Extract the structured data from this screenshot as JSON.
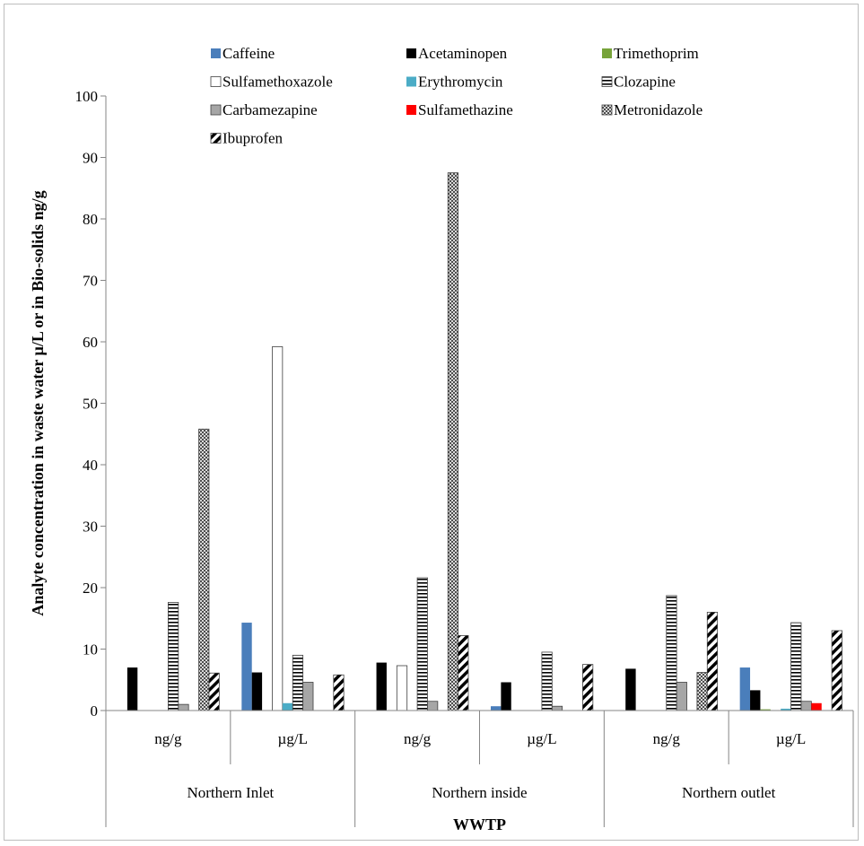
{
  "chart_data": {
    "type": "bar",
    "title": "",
    "xlabel": "WWTP",
    "ylabel": "Analyte concentration in waste water µ/L or in Bio-solids ng/g",
    "ylim": [
      0,
      100
    ],
    "yticks": [
      0,
      10,
      20,
      30,
      40,
      50,
      60,
      70,
      80,
      90,
      100
    ],
    "grid": false,
    "legend_position": "top",
    "groups": [
      {
        "label": "Northern Inlet",
        "categories": [
          "ng/g",
          "µg/L"
        ]
      },
      {
        "label": "Northern inside",
        "categories": [
          "ng/g",
          "µg/L"
        ]
      },
      {
        "label": "Northern outlet",
        "categories": [
          "ng/g",
          "µg/L"
        ]
      }
    ],
    "categories": [
      "ng/g",
      "µg/L",
      "ng/g",
      "µg/L",
      "ng/g",
      "µg/L"
    ],
    "series": [
      {
        "name": "Caffeine",
        "color": "#4a7ebb",
        "pattern": "solid",
        "values": [
          0,
          14.3,
          0,
          0.7,
          0,
          7.0
        ]
      },
      {
        "name": "Acetaminopen",
        "color": "#000000",
        "pattern": "solid",
        "values": [
          7.0,
          6.2,
          7.8,
          4.6,
          6.8,
          3.3
        ]
      },
      {
        "name": "Trimethoprim",
        "color": "#77a33a",
        "pattern": "solid",
        "values": [
          0,
          0,
          0,
          0,
          0,
          0.2
        ]
      },
      {
        "name": "Sulfamethoxazole",
        "color": "#ffffff",
        "pattern": "outline",
        "values": [
          0,
          59.2,
          7.3,
          0,
          0,
          0
        ]
      },
      {
        "name": "Erythromycin",
        "color": "#4bacc6",
        "pattern": "solid",
        "values": [
          0,
          1.2,
          0,
          0,
          0,
          0.3
        ]
      },
      {
        "name": "Clozapine",
        "color": "#000000",
        "pattern": "horizontal-stripes",
        "values": [
          17.6,
          9.0,
          21.6,
          9.5,
          18.7,
          14.3
        ]
      },
      {
        "name": "Carbamezapine",
        "color": "#a6a6a6",
        "pattern": "solid-gray",
        "values": [
          1.0,
          4.6,
          1.5,
          0.7,
          4.6,
          1.5
        ]
      },
      {
        "name": "Sulfamethazine",
        "color": "#ff0000",
        "pattern": "solid",
        "values": [
          0,
          0,
          0,
          0,
          0,
          1.2
        ]
      },
      {
        "name": "Metronidazole",
        "color": "#7f7f7f",
        "pattern": "dense-check",
        "values": [
          45.8,
          0,
          87.5,
          0,
          6.2,
          0
        ]
      },
      {
        "name": "Ibuprofen",
        "color": "#000000",
        "pattern": "diagonal-stripes",
        "values": [
          6.1,
          5.8,
          12.2,
          7.5,
          16.0,
          13.0
        ]
      }
    ]
  }
}
